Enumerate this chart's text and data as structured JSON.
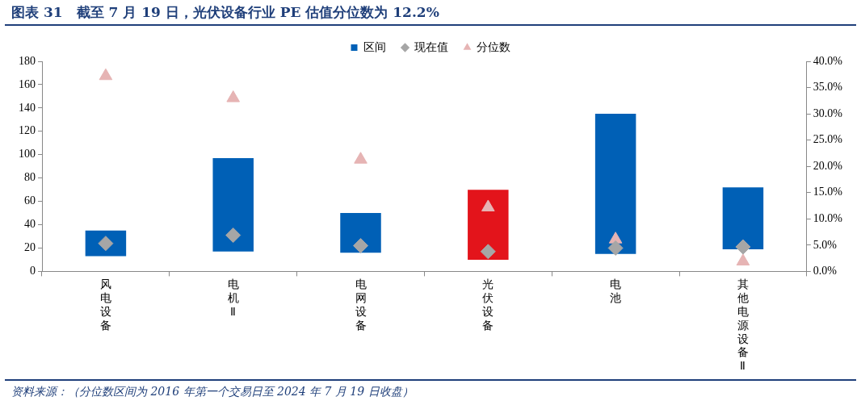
{
  "chart_data": {
    "type": "bar",
    "title": "图表 31　截至 7 月 19 日，光伏设备行业 PE 估值分位数为 12.2%",
    "categories": [
      "风电设备",
      "电机Ⅱ",
      "电网设备",
      "光伏设备",
      "电池",
      "其他电源设备Ⅱ"
    ],
    "series": [
      {
        "name": "区间",
        "type": "bar",
        "color": "#0060b6",
        "colors": [
          "#0060b6",
          "#0060b6",
          "#0060b6",
          "#e3141b",
          "#0060b6",
          "#0060b6"
        ],
        "base": [
          13,
          17,
          16,
          10,
          15,
          19
        ],
        "values": [
          22,
          80,
          34,
          60,
          120,
          53
        ]
      },
      {
        "name": "现在值",
        "type": "scatter",
        "marker": "diamond",
        "color": "#a6a6a6",
        "x": [
          "风电设备",
          "电机Ⅱ",
          "电网设备",
          "光伏设备",
          "电池",
          "其他电源设备Ⅱ"
        ],
        "values": [
          24,
          31,
          22,
          17,
          20,
          21
        ]
      },
      {
        "name": "分位数",
        "type": "scatter",
        "marker": "triangle",
        "axis": "y2",
        "color": "#e6b4b4",
        "x": [
          "风电设备",
          "电机Ⅱ",
          "电网设备",
          "光伏设备",
          "电池",
          "其他电源设备Ⅱ"
        ],
        "values": [
          37.2,
          33.0,
          21.3,
          12.2,
          6.1,
          1.9
        ]
      }
    ],
    "ylim": [
      0,
      180
    ],
    "yticks": [
      0,
      20,
      40,
      60,
      80,
      100,
      120,
      140,
      160,
      180
    ],
    "y2lim": [
      0,
      40
    ],
    "y2ticks": [
      {
        "value": 0,
        "label": "0.0%"
      },
      {
        "value": 5,
        "label": "5.0%"
      },
      {
        "value": 10,
        "label": "10.0%"
      },
      {
        "value": 15,
        "label": "15.0%"
      },
      {
        "value": 20,
        "label": "20.0%"
      },
      {
        "value": 25,
        "label": "25.0%"
      },
      {
        "value": 30,
        "label": "30.0%"
      },
      {
        "value": 35,
        "label": "35.0%"
      },
      {
        "value": 40,
        "label": "40.0%"
      }
    ],
    "grid": false,
    "legend": "top",
    "annotations": [
      "资料来源：（分位数区间为 2016 年第一个交易日至 2024 年 7 月 19 日收盘）"
    ]
  }
}
